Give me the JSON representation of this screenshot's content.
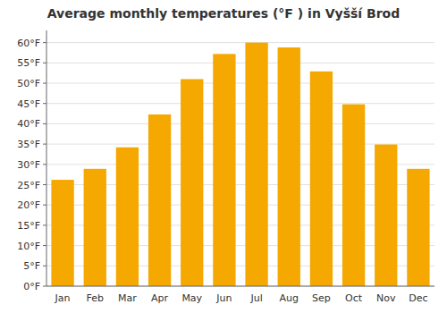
{
  "chart_data": {
    "type": "bar",
    "title": "Average monthly temperatures (°F ) in Vyšší Brod",
    "categories": [
      "Jan",
      "Feb",
      "Mar",
      "Apr",
      "May",
      "Jun",
      "Jul",
      "Aug",
      "Sep",
      "Oct",
      "Nov",
      "Dec"
    ],
    "values": [
      26.2,
      28.9,
      34.2,
      42.3,
      51.0,
      57.2,
      60.0,
      58.8,
      52.9,
      44.8,
      34.9,
      28.9
    ],
    "color": "#F5A800",
    "ylim": [
      0,
      63
    ],
    "yticks": [
      {
        "value": 0,
        "label": "0°F"
      },
      {
        "value": 5,
        "label": "5°F"
      },
      {
        "value": 10,
        "label": "10°F"
      },
      {
        "value": 15,
        "label": "15°F"
      },
      {
        "value": 20,
        "label": "20°F"
      },
      {
        "value": 25,
        "label": "25°F"
      },
      {
        "value": 30,
        "label": "30°F"
      },
      {
        "value": 35,
        "label": "35°F"
      },
      {
        "value": 40,
        "label": "40°F"
      },
      {
        "value": 45,
        "label": "45°F"
      },
      {
        "value": 50,
        "label": "50°F"
      },
      {
        "value": 55,
        "label": "55°F"
      },
      {
        "value": 60,
        "label": "60°F"
      }
    ],
    "grid": true
  }
}
